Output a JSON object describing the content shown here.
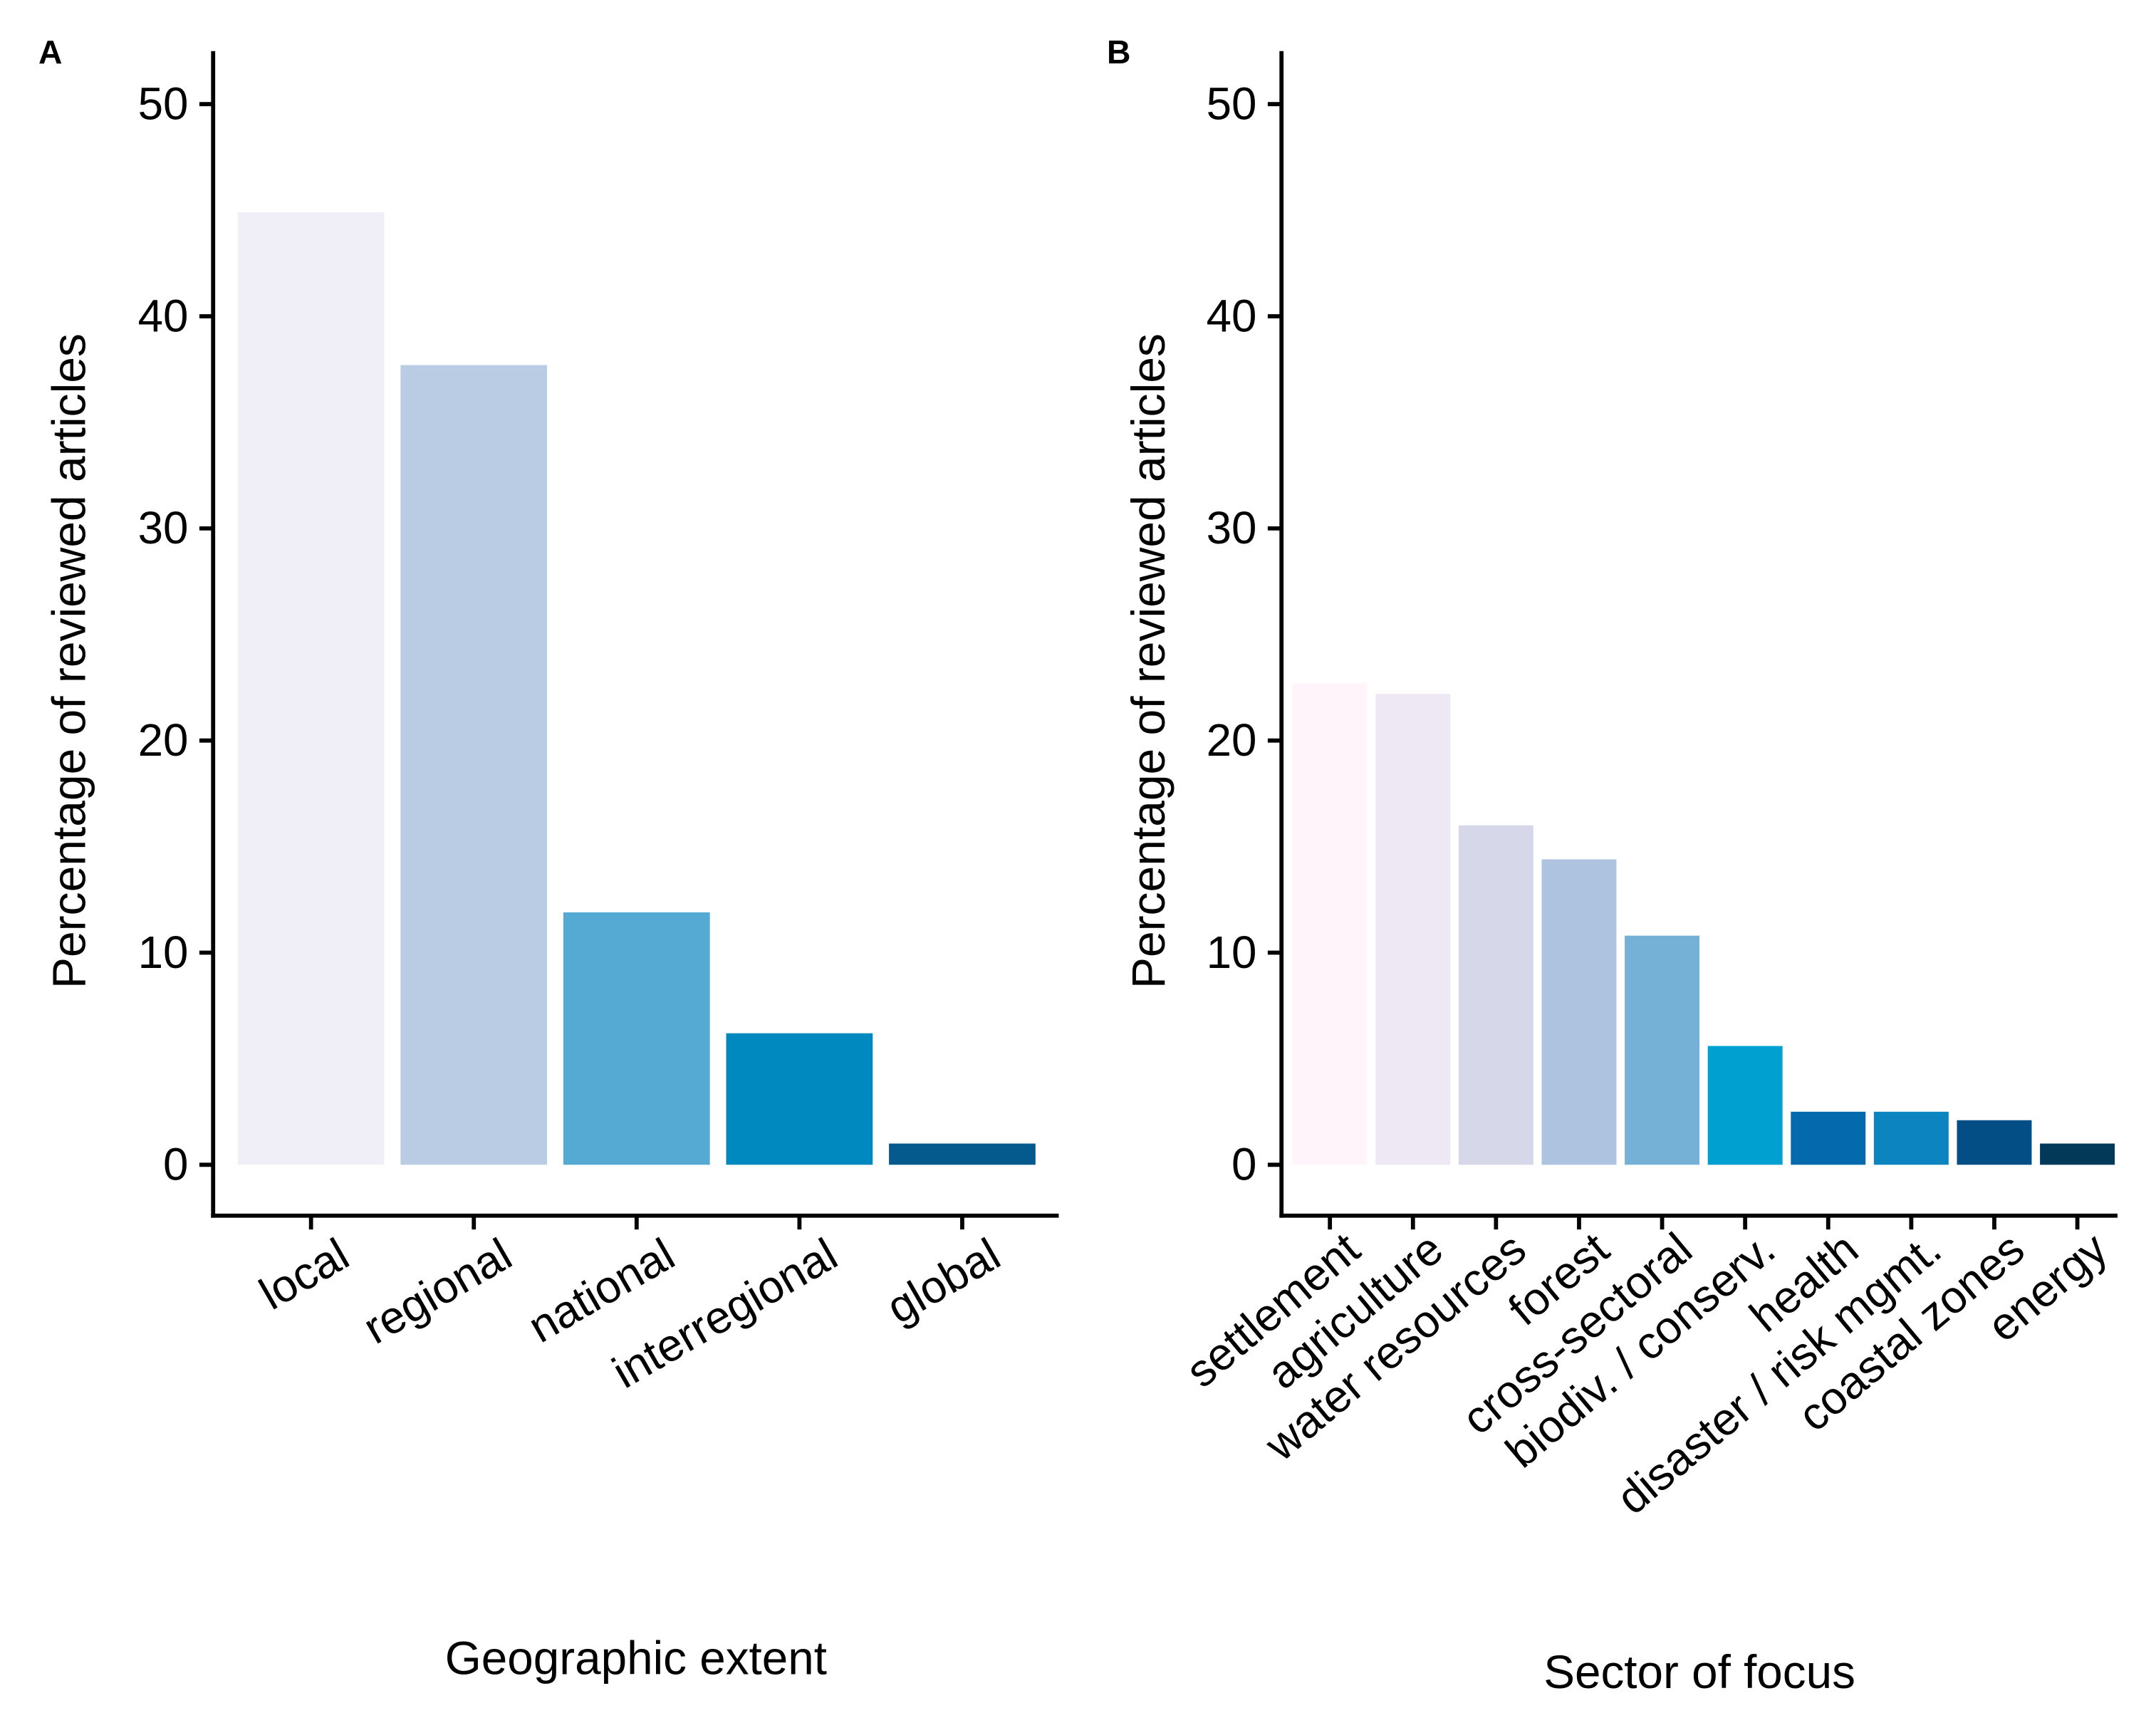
{
  "chart_data": [
    {
      "type": "bar",
      "panel": "A",
      "x_label": "Geographic extent",
      "y_label": "Percentage of reviewed articles",
      "categories": [
        "local",
        "regional",
        "national",
        "interregional",
        "global"
      ],
      "values": [
        44.9,
        37.7,
        11.9,
        6.2,
        1.0
      ],
      "colors": [
        "#f0eef6",
        "#b9cce4",
        "#54aad3",
        "#0089bf",
        "#045a8d"
      ],
      "ylim": [
        -2.4,
        52.5
      ],
      "yticks": [
        0,
        10,
        20,
        30,
        40,
        50
      ]
    },
    {
      "type": "bar",
      "panel": "B",
      "x_label": "Sector of focus",
      "y_label": "Percentage of reviewed articles",
      "categories": [
        "settlement",
        "agriculture",
        "water resources",
        "forest",
        "cross-sectoral",
        "biodiv. / conserv.",
        "health",
        "disaster / risk mgmt.",
        "coastal zones",
        "energy"
      ],
      "values": [
        22.7,
        22.2,
        16.0,
        14.4,
        10.8,
        5.6,
        2.5,
        2.5,
        2.1,
        1.0
      ],
      "colors": [
        "#fff4fa",
        "#ede8f3",
        "#d6d8ea",
        "#adc3e0",
        "#75b1d6",
        "#00a0d1",
        "#0569ad",
        "#0b84c0",
        "#024e85",
        "#023858"
      ],
      "ylim": [
        -2.4,
        52.5
      ],
      "yticks": [
        0,
        10,
        20,
        30,
        40,
        50
      ]
    }
  ]
}
